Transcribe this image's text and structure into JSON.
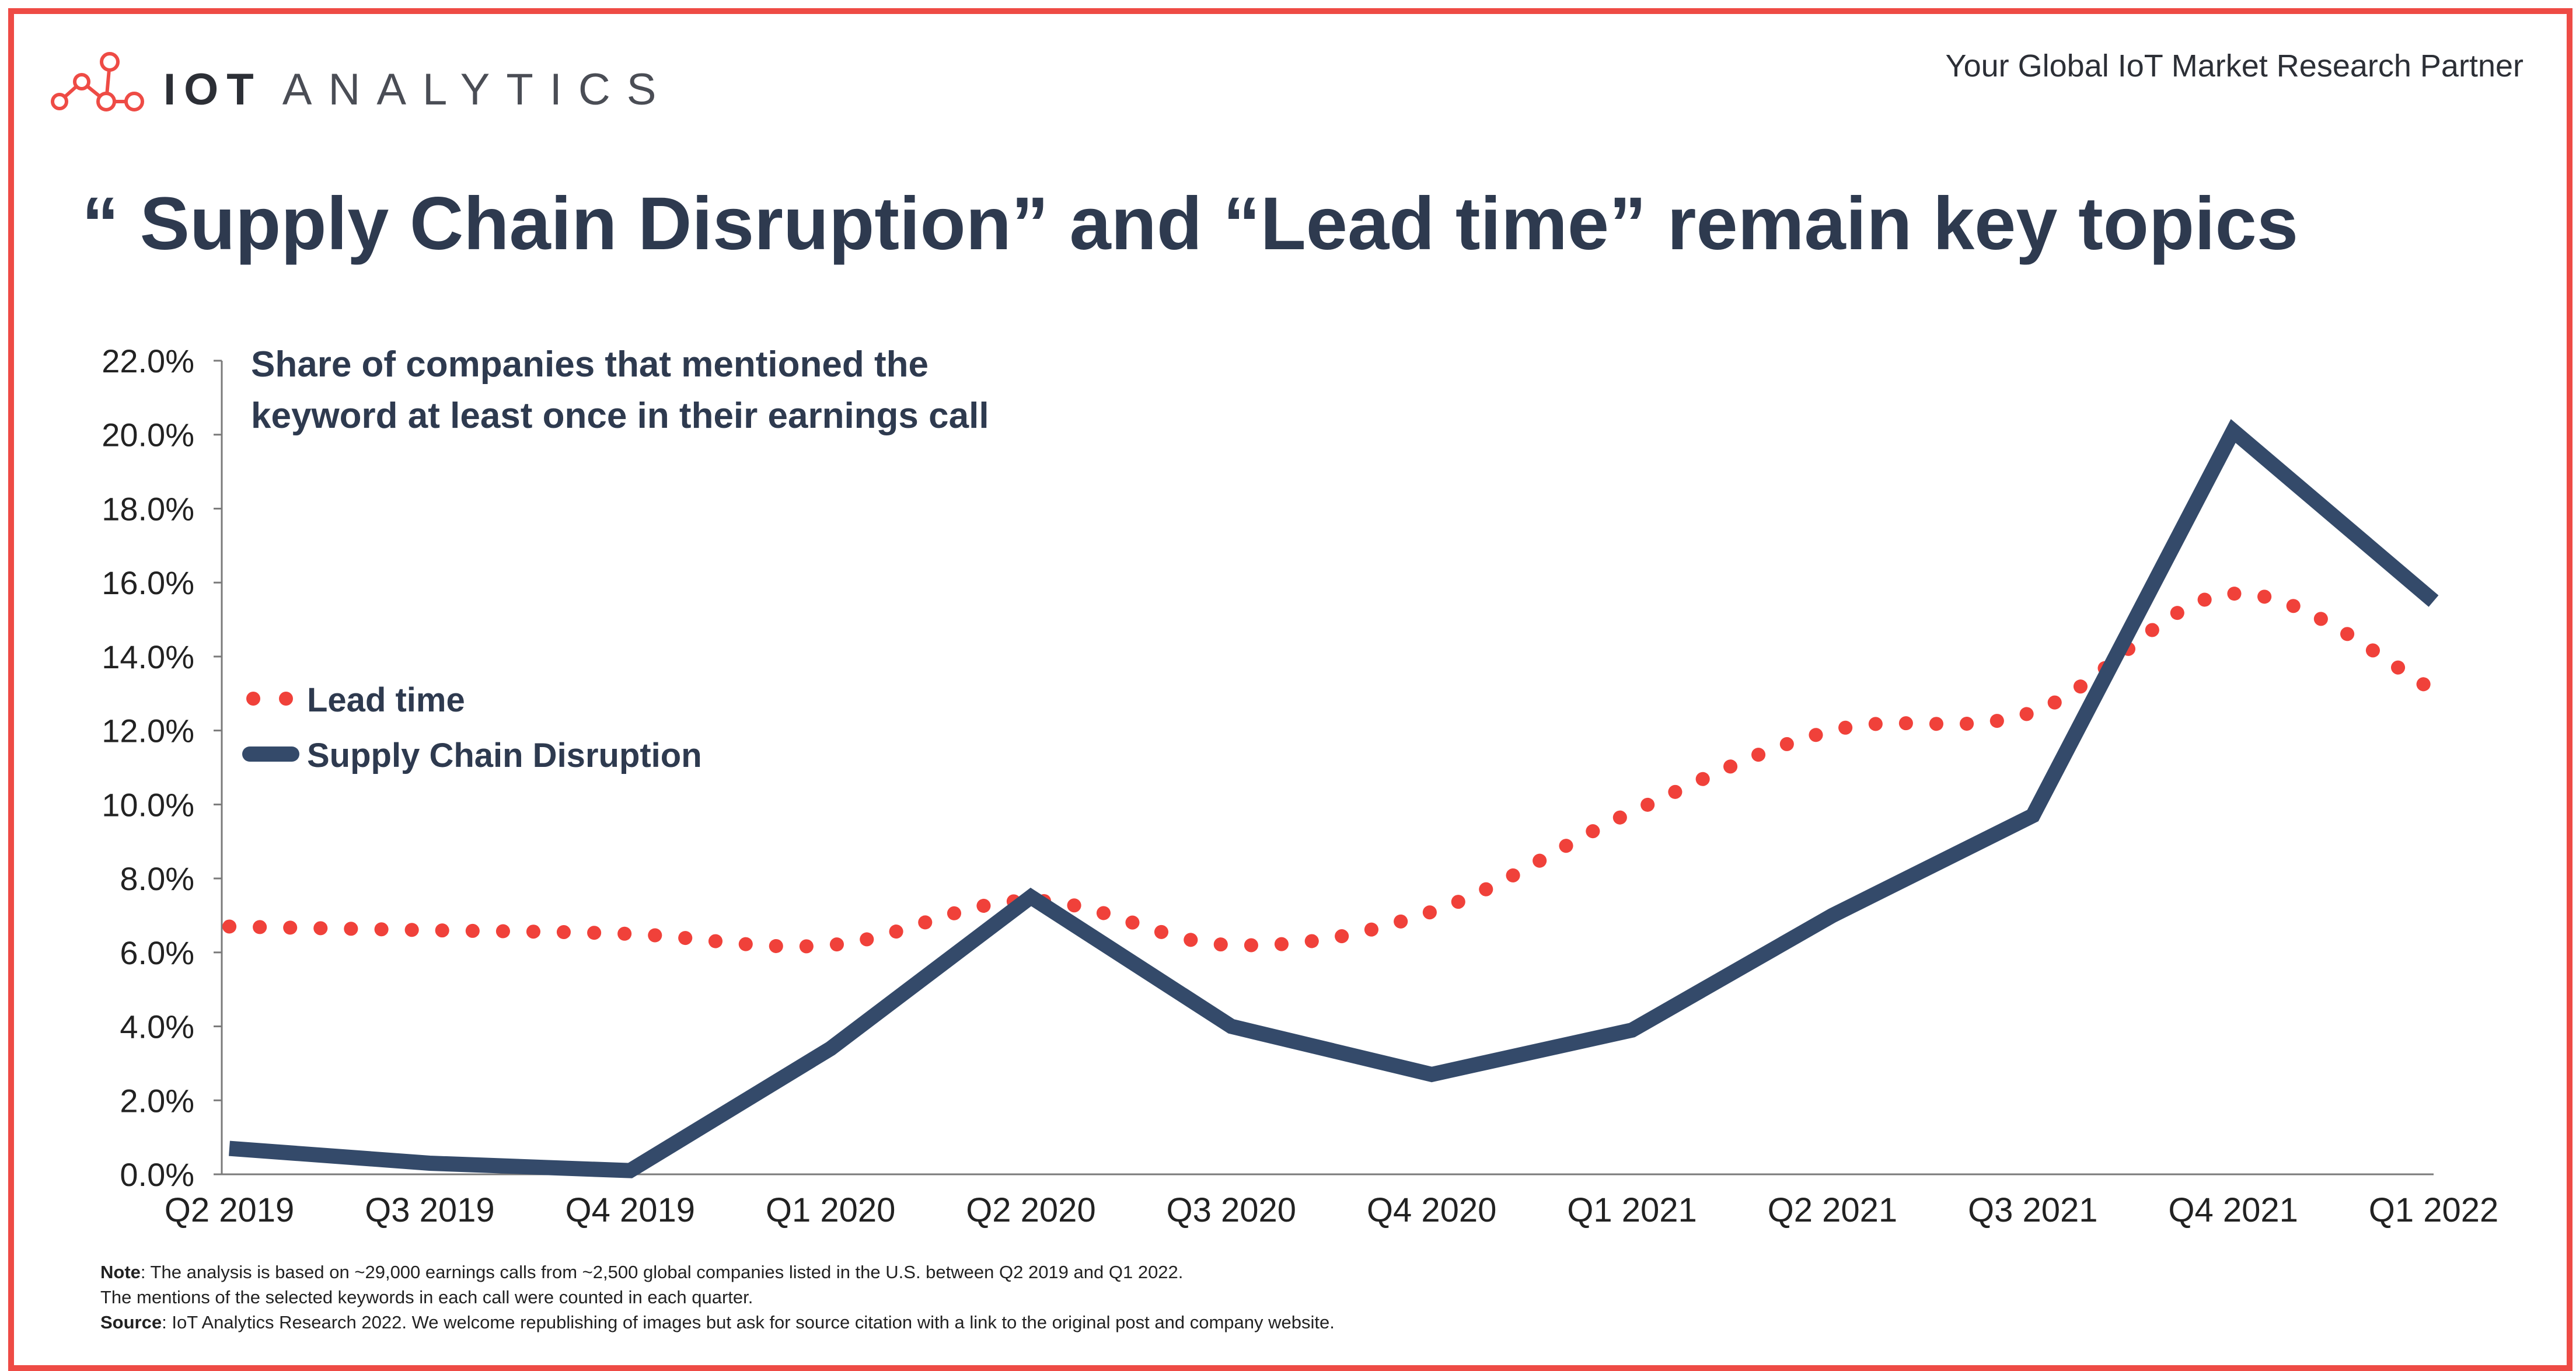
{
  "header": {
    "logo_bold": "IOT",
    "logo_light": "ANALYTICS",
    "tagline": "Your Global IoT Market Research Partner"
  },
  "title": "“ Supply Chain Disruption” and “Lead time” remain key topics",
  "colors": {
    "frame": "#ee4b45",
    "supply_chain": "#344a6a",
    "lead_time": "#f0413a",
    "text": "#2e3a4f"
  },
  "chart_data": {
    "type": "line",
    "subtitle_line1": "Share of companies that mentioned the",
    "subtitle_line2": "keyword at least once in their earnings call",
    "categories": [
      "Q2 2019",
      "Q3 2019",
      "Q4 2019",
      "Q1 2020",
      "Q2 2020",
      "Q3 2020",
      "Q4 2020",
      "Q1 2021",
      "Q2 2021",
      "Q3 2021",
      "Q4 2021",
      "Q1 2022"
    ],
    "y_ticks": [
      "0.0%",
      "2.0%",
      "4.0%",
      "6.0%",
      "8.0%",
      "10.0%",
      "12.0%",
      "14.0%",
      "16.0%",
      "18.0%",
      "20.0%",
      "22.0%"
    ],
    "ylim": [
      0,
      22
    ],
    "legend_position": "left",
    "series": [
      {
        "name": "Lead time",
        "style": "dotted",
        "values": [
          6.7,
          6.6,
          6.5,
          6.2,
          7.4,
          6.2,
          7.1,
          9.8,
          12.0,
          12.5,
          15.7,
          13.1
        ]
      },
      {
        "name": "Supply Chain Disruption",
        "style": "solid",
        "values": [
          0.7,
          0.3,
          0.1,
          3.4,
          7.5,
          4.0,
          2.7,
          3.9,
          7.0,
          9.7,
          20.1,
          15.5
        ]
      }
    ]
  },
  "notes": {
    "note_label": "Note",
    "note_text": ": The analysis is based on ~29,000 earnings calls from ~2,500 global companies listed in the U.S. between Q2 2019 and Q1 2022.",
    "note_text2": "The mentions of the selected keywords in each call were counted in each quarter.",
    "source_label": "Source",
    "source_text": ": IoT Analytics Research 2022. We welcome republishing of images but ask for source citation with a link to the original post and company website."
  }
}
